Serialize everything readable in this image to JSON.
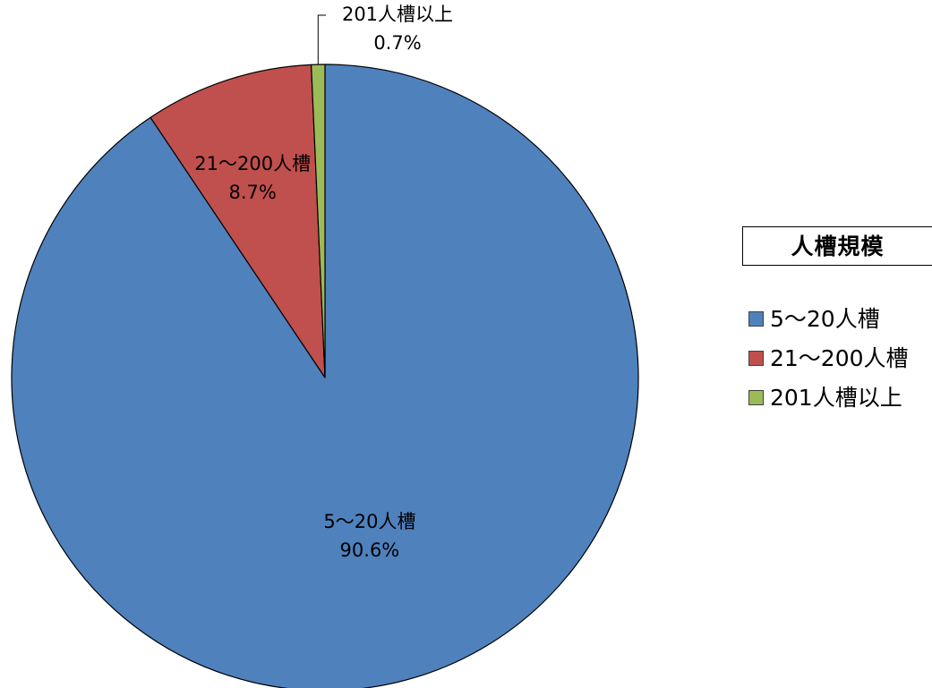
{
  "chart_data": {
    "type": "pie",
    "title": "",
    "legend": {
      "title": "人槽規模",
      "placement": "right"
    },
    "slices": [
      {
        "label": "5～20人槽",
        "value": 90.6,
        "value_label": "90.6%",
        "color": "#4F81BD"
      },
      {
        "label": "21～200人槽",
        "value": 8.7,
        "value_label": "8.7%",
        "color": "#C0504D"
      },
      {
        "label": "201人槽以上",
        "value": 0.7,
        "value_label": "0.7%",
        "color": "#9BBB59"
      }
    ]
  }
}
